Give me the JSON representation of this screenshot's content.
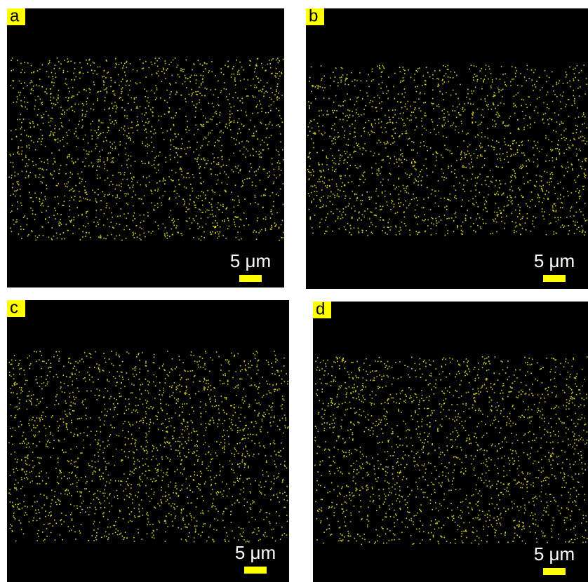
{
  "panels": [
    {
      "label": "a",
      "scale_bar": "5 μm"
    },
    {
      "label": "b",
      "scale_bar": "5 μm"
    },
    {
      "label": "c",
      "scale_bar": "5 μm"
    },
    {
      "label": "d",
      "scale_bar": "5 μm"
    }
  ]
}
